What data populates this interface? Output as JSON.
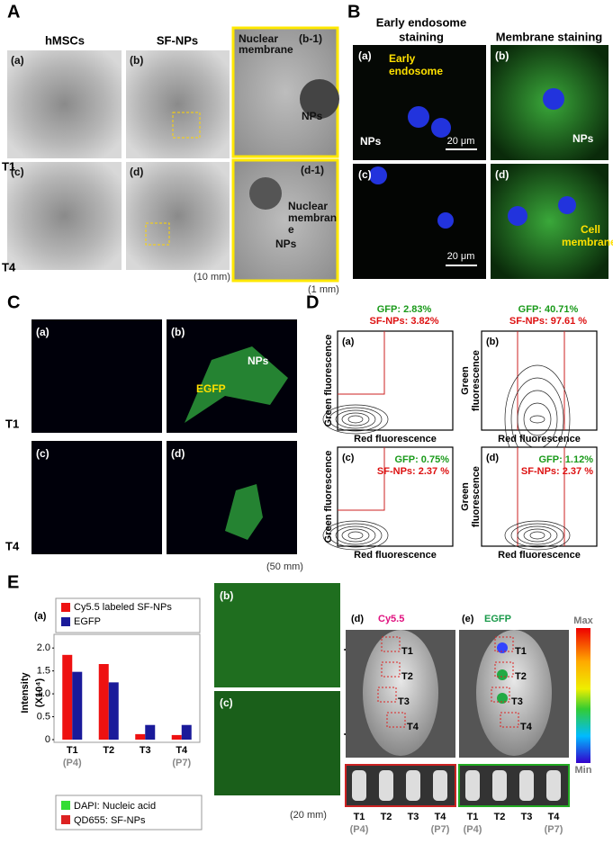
{
  "panel_a": {
    "label": "A",
    "columns": [
      "hMSCs",
      "SF-NPs"
    ],
    "rows": [
      "T1",
      "T4"
    ],
    "subpanels": [
      "(a)",
      "(b)",
      "(c)",
      "(d)"
    ],
    "scale": "(10 mm)",
    "zoom_b1": {
      "label": "(b-1)",
      "membrane": [
        "Nuclear",
        "membrane"
      ],
      "nps": "NPs"
    },
    "zoom_d1": {
      "label": "(d-1)",
      "membrane": [
        "Nuclear",
        "membran",
        "e"
      ],
      "nps": "NPs"
    },
    "zoom_scale": "(1 mm)"
  },
  "panel_b": {
    "label": "B",
    "columns": [
      [
        "Early endosome",
        "staining"
      ],
      "Membrane staining"
    ],
    "subpanels": [
      "(a)",
      "(b)",
      "(c)",
      "(d)"
    ],
    "endosome": [
      "Early",
      "endosome"
    ],
    "nps": "NPs",
    "scale_bar": "20 μm",
    "cell_membrane": [
      "Cell",
      "membrane"
    ]
  },
  "panel_c": {
    "label": "C",
    "subpanels": [
      "(a)",
      "(b)",
      "(c)",
      "(d)"
    ],
    "rows": [
      "T1",
      "T4"
    ],
    "egfp": "EGFP",
    "nps": "NPs",
    "scale": "(50 mm)"
  },
  "panel_d": {
    "label": "D",
    "x_label": "Red fluorescence",
    "y_label": "Green fluorescence",
    "y_label_split": [
      "Green",
      "fluorescence"
    ],
    "plots": [
      {
        "label": "(a)",
        "gfp": "GFP: 2.83%",
        "sfnps": "SF-NPs: 3.82%"
      },
      {
        "label": "(b)",
        "gfp": "GFP: 40.71%",
        "sfnps": "SF-NPs: 97.61 %"
      },
      {
        "label": "(c)",
        "gfp": "GFP: 0.75%",
        "sfnps": "SF-NPs: 2.37 %"
      },
      {
        "label": "(d)",
        "gfp": "GFP: 1.12%",
        "sfnps": "SF-NPs: 2.37 %"
      }
    ]
  },
  "panel_e": {
    "label": "E",
    "sub_a": "(a)",
    "sub_b": "(b)",
    "sub_c": "(c)",
    "sub_d": "(d)",
    "sub_e": "(e)",
    "stain_legend": [
      "DAPI: Nucleic acid",
      "QD655: SF-NPs"
    ],
    "scale": "(20 mm)",
    "imaging": [
      "Cy5.5",
      "EGFP"
    ],
    "colorbar": [
      "Max",
      "Min"
    ],
    "regions": [
      "T1",
      "T2",
      "T3",
      "T4"
    ],
    "passages": [
      "(P4)",
      "(P7)"
    ]
  },
  "chart_data": {
    "type": "bar",
    "y_label": "Intensity",
    "y_unit": "(X10⁴)",
    "categories": [
      "T1",
      "T2",
      "T3",
      "T4"
    ],
    "sublabels": [
      "(P4)",
      null,
      null,
      "(P7)"
    ],
    "series": [
      {
        "name": "Cy5.5 labeled SF-NPs",
        "color": "#ee1111",
        "values": [
          1.85,
          1.65,
          0.12,
          0.1
        ]
      },
      {
        "name": "EGFP",
        "color": "#1a1a9a",
        "values": [
          1.48,
          1.25,
          0.32,
          0.32
        ]
      }
    ],
    "ylim": [
      0,
      2.2
    ],
    "yticks": [
      0,
      0.5,
      {
        "value": 1,
        "label": "1.0"
      },
      1.5,
      {
        "value": 2,
        "label": "2.0"
      }
    ]
  }
}
